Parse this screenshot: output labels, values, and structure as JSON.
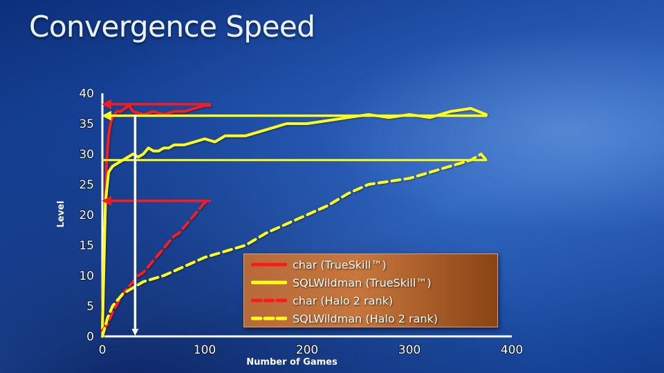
{
  "slide": {
    "title": "Convergence Speed"
  },
  "chart_data": {
    "type": "line",
    "title": "",
    "xlabel": "Number of Games",
    "ylabel": "Level",
    "xlim": [
      0,
      400
    ],
    "ylim": [
      0,
      40
    ],
    "xticks": [
      0,
      100,
      200,
      300,
      400
    ],
    "yticks": [
      0,
      5,
      10,
      15,
      20,
      25,
      30,
      35,
      40
    ],
    "legend_position": "bottom-center",
    "series": [
      {
        "name": "char (TrueSkill™)",
        "color": "#ff1a1a",
        "dash": "solid",
        "x": [
          0,
          2,
          4,
          6,
          8,
          10,
          14,
          18,
          22,
          26,
          30,
          40,
          50,
          60,
          70,
          80,
          90,
          100,
          105
        ],
        "y": [
          2,
          15,
          28,
          33,
          35,
          36,
          37,
          37,
          37.5,
          38,
          37,
          36.5,
          37,
          36.5,
          37,
          37,
          37.5,
          38,
          38
        ]
      },
      {
        "name": "SQLWildman (TrueSkill™)",
        "color": "#ffff1a",
        "dash": "solid",
        "x": [
          0,
          3,
          6,
          10,
          15,
          20,
          25,
          30,
          35,
          40,
          45,
          50,
          55,
          60,
          65,
          70,
          80,
          90,
          100,
          110,
          120,
          130,
          140,
          150,
          160,
          180,
          200,
          220,
          240,
          260,
          280,
          300,
          320,
          340,
          360,
          375
        ],
        "y": [
          1,
          22,
          27,
          28,
          28.5,
          29,
          29.5,
          30,
          29.5,
          30,
          31,
          30.5,
          30.5,
          31,
          31,
          31.5,
          31.5,
          32,
          32.5,
          32,
          33,
          33,
          33,
          33.5,
          34,
          35,
          35,
          35.5,
          36,
          36.5,
          36,
          36.5,
          36,
          37,
          37.5,
          36.5
        ]
      },
      {
        "name": "char (Halo 2 rank)",
        "color": "#ff1a1a",
        "dash": "dashed",
        "x": [
          0,
          5,
          10,
          15,
          20,
          25,
          30,
          35,
          40,
          45,
          50,
          55,
          60,
          65,
          70,
          75,
          80,
          85,
          90,
          95,
          100,
          105
        ],
        "y": [
          1,
          2,
          4,
          5.5,
          7,
          8,
          9,
          10,
          10.5,
          11.5,
          12.5,
          13.5,
          14.5,
          15.5,
          16.5,
          17,
          18,
          19,
          20,
          21,
          22,
          22
        ]
      },
      {
        "name": "SQLWildman (Halo 2 rank)",
        "color": "#ffff1a",
        "dash": "dashed",
        "x": [
          0,
          5,
          10,
          20,
          30,
          40,
          50,
          60,
          80,
          100,
          120,
          140,
          160,
          180,
          200,
          220,
          240,
          260,
          280,
          300,
          320,
          340,
          360,
          370,
          375
        ],
        "y": [
          0,
          3,
          5,
          7,
          8,
          9,
          9.5,
          10,
          11.5,
          13,
          14,
          15,
          17,
          18.5,
          20,
          21.5,
          23.5,
          25,
          25.5,
          26,
          27,
          28,
          29,
          30,
          29
        ]
      }
    ],
    "annotations": [
      {
        "type": "arrow-left",
        "from": [
          105,
          38.2
        ],
        "to": [
          0,
          38.2
        ],
        "color": "#ff1a1a"
      },
      {
        "type": "arrow-left",
        "from": [
          375,
          36.3
        ],
        "to": [
          0,
          36.3
        ],
        "color": "#ffff1a"
      },
      {
        "type": "arrow-left",
        "from": [
          105,
          22.3
        ],
        "to": [
          0,
          22.3
        ],
        "color": "#ff1a1a"
      },
      {
        "type": "line",
        "from": [
          0,
          29
        ],
        "to": [
          375,
          29
        ],
        "color": "#ffff1a"
      },
      {
        "type": "arrow-down",
        "from": [
          32,
          36.3
        ],
        "to": [
          32,
          0
        ],
        "color": "#ffffff"
      }
    ]
  }
}
